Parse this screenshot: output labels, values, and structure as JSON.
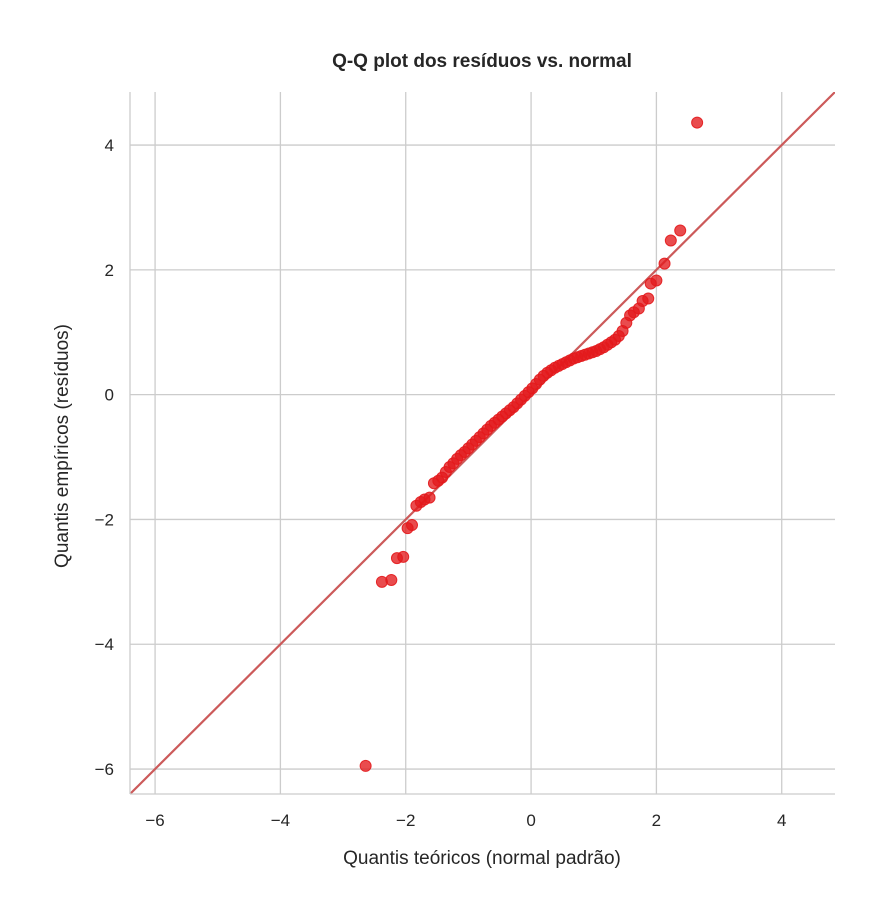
{
  "chart_data": {
    "type": "scatter",
    "title": "Q-Q plot dos resíduos vs. normal",
    "xlabel": "Quantis teóricos (normal padrão)",
    "ylabel": "Quantis empíricos (resíduos)",
    "xlim": [
      -6.4,
      4.85
    ],
    "ylim": [
      -6.4,
      4.85
    ],
    "xticks": [
      -6,
      -4,
      -2,
      0,
      2,
      4
    ],
    "yticks": [
      -6,
      -4,
      -2,
      0,
      2,
      4
    ],
    "xtick_labels": [
      "−6",
      "−4",
      "−2",
      "0",
      "2",
      "4"
    ],
    "ytick_labels": [
      "−6",
      "−4",
      "−2",
      "0",
      "2",
      "4"
    ],
    "grid": true,
    "reference_line": {
      "type": "y=x",
      "color": "#cc5a5a"
    },
    "series": [
      {
        "color": "#e3191c",
        "points": [
          [
            -2.64,
            -5.95
          ],
          [
            -2.38,
            -3.0
          ],
          [
            -2.23,
            -2.97
          ],
          [
            -2.14,
            -2.62
          ],
          [
            -2.04,
            -2.6
          ],
          [
            -1.97,
            -2.14
          ],
          [
            -1.9,
            -2.09
          ],
          [
            -1.83,
            -1.78
          ],
          [
            -1.76,
            -1.72
          ],
          [
            -1.7,
            -1.68
          ],
          [
            -1.62,
            -1.65
          ],
          [
            -1.55,
            -1.42
          ],
          [
            -1.48,
            -1.38
          ],
          [
            -1.42,
            -1.33
          ],
          [
            -1.36,
            -1.24
          ],
          [
            -1.3,
            -1.16
          ],
          [
            -1.24,
            -1.1
          ],
          [
            -1.18,
            -1.03
          ],
          [
            -1.12,
            -0.97
          ],
          [
            -1.06,
            -0.92
          ],
          [
            -1.0,
            -0.86
          ],
          [
            -0.94,
            -0.8
          ],
          [
            -0.88,
            -0.74
          ],
          [
            -0.82,
            -0.68
          ],
          [
            -0.76,
            -0.62
          ],
          [
            -0.7,
            -0.56
          ],
          [
            -0.64,
            -0.5
          ],
          [
            -0.58,
            -0.45
          ],
          [
            -0.52,
            -0.4
          ],
          [
            -0.46,
            -0.35
          ],
          [
            -0.4,
            -0.3
          ],
          [
            -0.34,
            -0.25
          ],
          [
            -0.28,
            -0.2
          ],
          [
            -0.22,
            -0.14
          ],
          [
            -0.16,
            -0.08
          ],
          [
            -0.1,
            -0.02
          ],
          [
            -0.04,
            0.04
          ],
          [
            0.02,
            0.1
          ],
          [
            0.08,
            0.17
          ],
          [
            0.14,
            0.24
          ],
          [
            0.2,
            0.3
          ],
          [
            0.26,
            0.35
          ],
          [
            0.32,
            0.39
          ],
          [
            0.38,
            0.43
          ],
          [
            0.44,
            0.46
          ],
          [
            0.5,
            0.49
          ],
          [
            0.56,
            0.52
          ],
          [
            0.62,
            0.55
          ],
          [
            0.68,
            0.58
          ],
          [
            0.74,
            0.6
          ],
          [
            0.8,
            0.62
          ],
          [
            0.86,
            0.64
          ],
          [
            0.92,
            0.66
          ],
          [
            0.98,
            0.68
          ],
          [
            1.04,
            0.7
          ],
          [
            1.1,
            0.73
          ],
          [
            1.16,
            0.76
          ],
          [
            1.22,
            0.8
          ],
          [
            1.28,
            0.84
          ],
          [
            1.34,
            0.88
          ],
          [
            1.4,
            0.94
          ],
          [
            1.46,
            1.02
          ],
          [
            1.52,
            1.15
          ],
          [
            1.58,
            1.27
          ],
          [
            1.64,
            1.32
          ],
          [
            1.72,
            1.38
          ],
          [
            1.78,
            1.5
          ],
          [
            1.87,
            1.54
          ],
          [
            1.91,
            1.78
          ],
          [
            2.0,
            1.83
          ],
          [
            2.13,
            2.1
          ],
          [
            2.23,
            2.47
          ],
          [
            2.38,
            2.63
          ],
          [
            2.65,
            4.36
          ]
        ]
      }
    ]
  }
}
